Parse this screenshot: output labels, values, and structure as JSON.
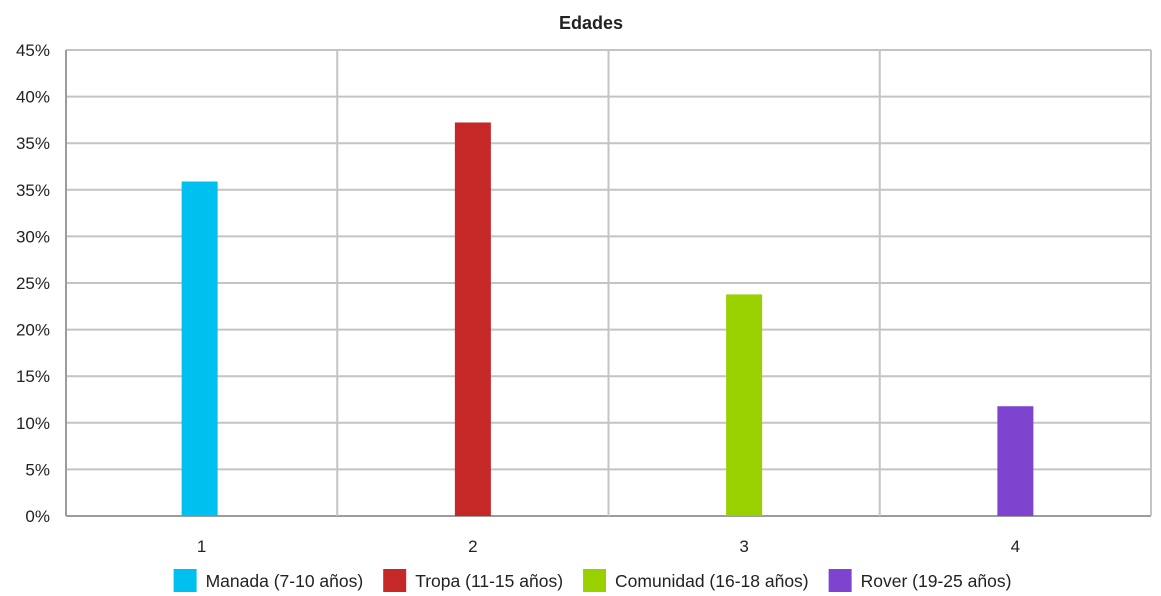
{
  "chart_data": {
    "type": "bar",
    "title": "Edades",
    "xlabel": "",
    "ylabel": "",
    "categories": [
      "1",
      "2",
      "3",
      "4"
    ],
    "y_tick_labels": [
      "0%",
      "5%",
      "10%",
      "15%",
      "20%",
      "25%",
      "30%",
      "35%",
      "35%",
      "40%",
      "45%"
    ],
    "ylim": [
      0,
      45
    ],
    "grid": true,
    "legend_position": "bottom",
    "series": [
      {
        "name": "Manada (7-10 años)",
        "category": "1",
        "value": 32.3,
        "color": "#00c0ef"
      },
      {
        "name": "Tropa (11-15 años)",
        "category": "2",
        "value": 38.0,
        "color": "#c62828"
      },
      {
        "name": "Comunidad (16-18 años)",
        "category": "3",
        "value": 21.4,
        "color": "#99d100"
      },
      {
        "name": "Rover (19-25 años)",
        "category": "4",
        "value": 10.6,
        "color": "#7e44d0"
      }
    ]
  }
}
